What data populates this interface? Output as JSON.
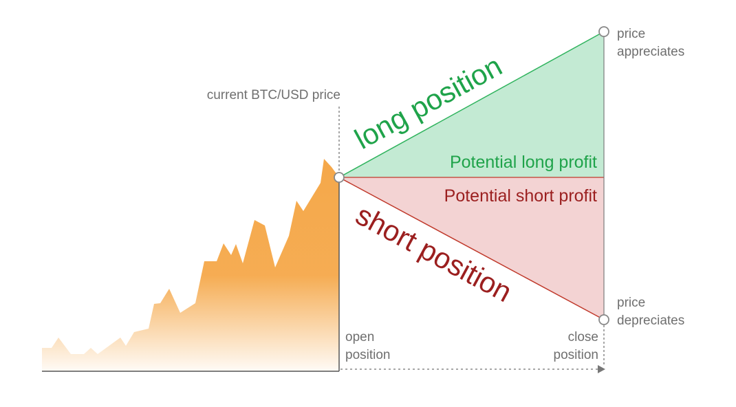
{
  "labels": {
    "current_price": "current BTC/USD price",
    "long_position": "long position",
    "short_position": "short position",
    "potential_long_profit": "Potential long profit",
    "potential_short_profit": "Potential short profit",
    "price_appreciates_line1": "price",
    "price_appreciates_line2": "appreciates",
    "price_depreciates_line1": "price",
    "price_depreciates_line2": "depreciates",
    "open_position_line1": "open",
    "open_position_line2": "position",
    "close_position_line1": "close",
    "close_position_line2": "position"
  },
  "colors": {
    "price_area": "#f5a84a",
    "long_region": "#c3ead3",
    "long_line": "#2fb35d",
    "short_region": "#f3d3d3",
    "short_line": "#c0392b",
    "axis": "#555555",
    "guide": "#888888"
  },
  "icons": {
    "open_marker": "circle-marker",
    "appreciate_marker": "circle-marker",
    "depreciate_marker": "circle-marker",
    "timeline_arrow": "arrow-right-icon"
  }
}
